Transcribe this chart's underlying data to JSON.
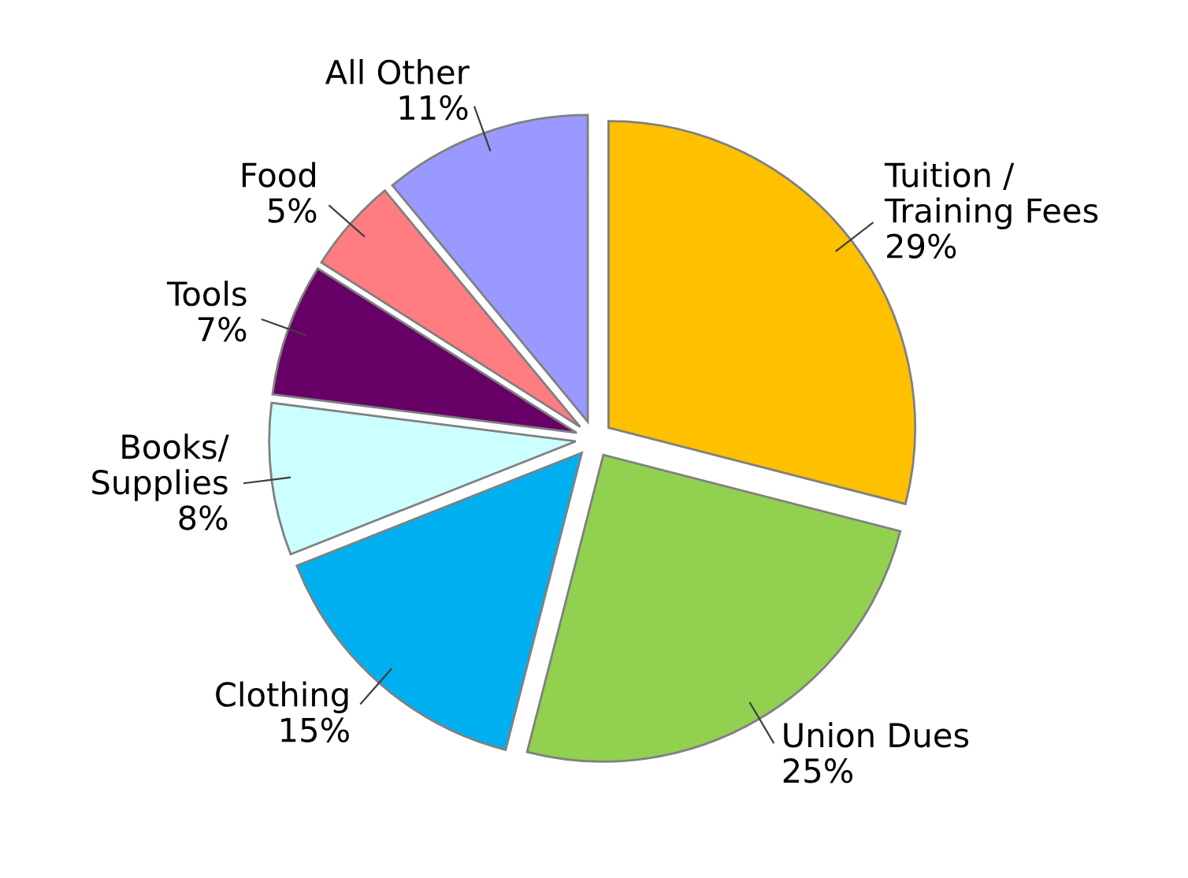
{
  "chart_data": {
    "type": "pie",
    "categories": [
      "Tuition /\nTraining Fees",
      "Union Dues",
      "Clothing",
      "Books/\nSupplies",
      "Tools",
      "Food",
      "All Other"
    ],
    "values": [
      29,
      25,
      15,
      8,
      7,
      5,
      11
    ],
    "value_labels": [
      "29%",
      "25%",
      "15%",
      "8%",
      "7%",
      "5%",
      "11%"
    ],
    "colors": [
      "#ffc000",
      "#92d050",
      "#00b0f0",
      "#ccffff",
      "#660066",
      "#ff7c80",
      "#9999ff"
    ],
    "legend": false
  }
}
